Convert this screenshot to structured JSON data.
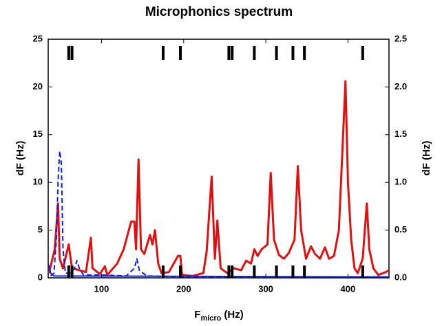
{
  "chart_data": {
    "type": "line",
    "title": "Microphonics spectrum",
    "xlabel": "F",
    "xlabel_subscript": "micro",
    "xlabel_unit": "(Hz)",
    "ylabel": "dF (Hz)",
    "y2label": "dF (Hz)",
    "xlim": [
      35,
      450
    ],
    "xticks": [
      100,
      200,
      300,
      400
    ],
    "ylim": [
      0,
      25
    ],
    "yticks": [
      0,
      5,
      10,
      15,
      20,
      25
    ],
    "y2lim": [
      0,
      2.5
    ],
    "y2ticks": [
      {
        "value": 0,
        "label": "0.0"
      },
      0.5,
      {
        "value": 1,
        "label": "1.0"
      },
      1.5,
      {
        "value": 2,
        "label": "2.0"
      },
      2.5
    ],
    "series": [
      {
        "color": "#e01010",
        "width": 3,
        "dashed": false,
        "axis": "y",
        "x": [
          36,
          43,
          47,
          49,
          53,
          60,
          64,
          73,
          81,
          87,
          89,
          98,
          104,
          107,
          119,
          127,
          136,
          140,
          142,
          145,
          148,
          152,
          159,
          162,
          165,
          169,
          173,
          182,
          193,
          196,
          198,
          211,
          224,
          228,
          234,
          238,
          241,
          245,
          253,
          261,
          270,
          276,
          282,
          286,
          290,
          295,
          302,
          306,
          310,
          316,
          322,
          328,
          335,
          339,
          343,
          349,
          355,
          360,
          366,
          372,
          377,
          383,
          389,
          392,
          397,
          400,
          404,
          408,
          412,
          418,
          423,
          426,
          431,
          437,
          446,
          450
        ],
        "values": [
          0.5,
          3,
          7.8,
          2,
          1,
          3.5,
          1,
          0.8,
          0.6,
          4.2,
          1,
          0.4,
          1.2,
          0.3,
          1.5,
          3,
          5.9,
          5.9,
          3,
          12.4,
          3,
          2.5,
          4.5,
          3.5,
          5,
          1.5,
          0.5,
          0.6,
          2.3,
          2.3,
          0.3,
          0.2,
          0.5,
          2.8,
          10.6,
          2,
          6,
          1,
          0.5,
          1,
          0.8,
          1.8,
          1.5,
          3,
          2.3,
          3,
          3.5,
          11,
          4,
          2.4,
          2,
          2.6,
          4,
          11.7,
          5,
          2,
          3.3,
          2.5,
          2,
          3.2,
          2,
          2.3,
          5,
          10.8,
          20.6,
          10,
          4,
          1,
          0.5,
          2,
          7.8,
          3,
          1,
          0.3,
          0.6,
          0.8
        ]
      },
      {
        "color": "#1020e0",
        "width": 2,
        "dashed": true,
        "axis": "y2",
        "x": [
          38,
          42,
          45,
          47,
          49,
          51,
          53,
          56,
          62,
          67,
          70,
          73,
          78,
          100,
          130,
          140,
          143,
          146,
          155,
          200,
          300,
          450
        ],
        "values": [
          0.02,
          0.05,
          0.4,
          1.0,
          1.33,
          1.2,
          0.3,
          0.05,
          0.05,
          0.1,
          0.18,
          0.1,
          0.03,
          0.03,
          0.02,
          0.1,
          0.2,
          0.08,
          0.02,
          0.01,
          0.01,
          0.01
        ]
      },
      {
        "color": "#1020e0",
        "width": 2,
        "dashed": false,
        "axis": "y2",
        "x": [
          35,
          38,
          42,
          450
        ],
        "values": [
          0.15,
          0.05,
          0.02,
          0.01
        ]
      }
    ],
    "markers": {
      "color": "#000000",
      "x": [
        60,
        64,
        175,
        196,
        255,
        259,
        286,
        313,
        333,
        347,
        418
      ]
    }
  }
}
